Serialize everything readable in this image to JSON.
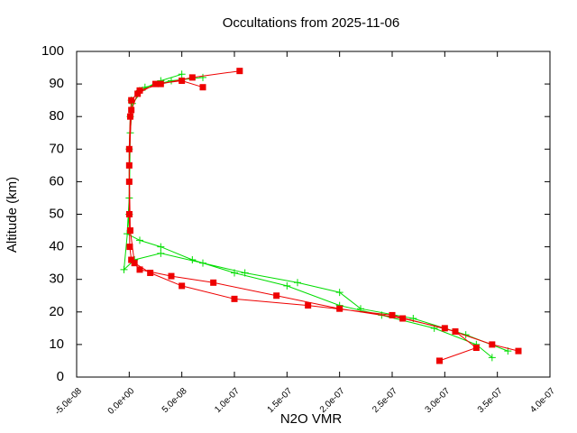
{
  "chart_data": {
    "type": "line",
    "title": "Occultations from 2025-11-06",
    "xlabel": "N2O VMR",
    "ylabel": "Altitude (km)",
    "xlim": [
      -5e-08,
      4e-07
    ],
    "xticks": [
      {
        "value": -5e-08,
        "label": "-5.0e-08"
      },
      {
        "value": 0,
        "label": "0.0e+00"
      },
      {
        "value": 5e-08,
        "label": "5.0e-08"
      },
      {
        "value": 1e-07,
        "label": "1.0e-07"
      },
      {
        "value": 1.5e-07,
        "label": "1.5e-07"
      },
      {
        "value": 2e-07,
        "label": "2.0e-07"
      },
      {
        "value": 2.5e-07,
        "label": "2.5e-07"
      },
      {
        "value": 3e-07,
        "label": "3.0e-07"
      },
      {
        "value": 3.5e-07,
        "label": "3.5e-07"
      },
      {
        "value": 4e-07,
        "label": "4.0e-07"
      }
    ],
    "ylim": [
      0,
      100
    ],
    "yticks": [
      0,
      10,
      20,
      30,
      40,
      50,
      60,
      70,
      80,
      90,
      100
    ],
    "series": [
      {
        "color": "#00dd00",
        "marker": "plus",
        "x": [
          3.45e-07,
          3.3e-07,
          2.9e-07,
          2.4e-07,
          2e-07,
          1.5e-07,
          1e-07,
          6e-08,
          3e-08,
          1e-08,
          -2e-09,
          0,
          0,
          1e-09,
          2e-09,
          1e-08,
          3e-08,
          5e-08,
          null,
          3.6e-07,
          3.2e-07,
          2.7e-07,
          2.2e-07,
          2e-07,
          1.6e-07,
          1.1e-07,
          7e-08,
          3e-08,
          5e-09,
          -5e-09,
          0,
          1e-09,
          3e-09,
          1.5e-08,
          4e-08,
          7e-08
        ],
        "values": [
          6,
          10,
          15,
          19,
          22,
          28,
          32,
          36,
          40,
          42,
          44,
          55,
          70,
          80,
          85,
          88,
          91,
          93,
          null,
          8,
          13,
          18,
          21,
          26,
          29,
          32,
          35,
          38,
          36,
          33,
          50,
          75,
          84,
          89,
          91,
          92
        ]
      },
      {
        "color": "#ee0000",
        "marker": "square",
        "x": [
          3.7e-07,
          3.45e-07,
          3e-07,
          2.6e-07,
          2e-07,
          1.4e-07,
          8e-08,
          4e-08,
          1e-08,
          2e-09,
          5e-10,
          1e-10,
          0,
          0,
          1e-09,
          2e-09,
          1e-08,
          3e-08,
          6e-08,
          1.05e-07,
          null,
          2.95e-07,
          3.3e-07,
          3.1e-07,
          2.5e-07,
          1.7e-07,
          1e-07,
          5e-08,
          2e-08,
          5e-09,
          1e-09,
          0,
          2e-09,
          8e-09,
          2.5e-08,
          5e-08,
          7e-08
        ],
        "values": [
          8,
          10,
          15,
          18,
          21,
          25,
          29,
          31,
          33,
          36,
          40,
          50,
          60,
          70,
          80,
          85,
          88,
          90,
          92,
          94,
          null,
          5,
          9,
          14,
          19,
          22,
          24,
          28,
          32,
          35,
          45,
          65,
          82,
          87,
          90,
          91,
          89
        ]
      }
    ]
  }
}
